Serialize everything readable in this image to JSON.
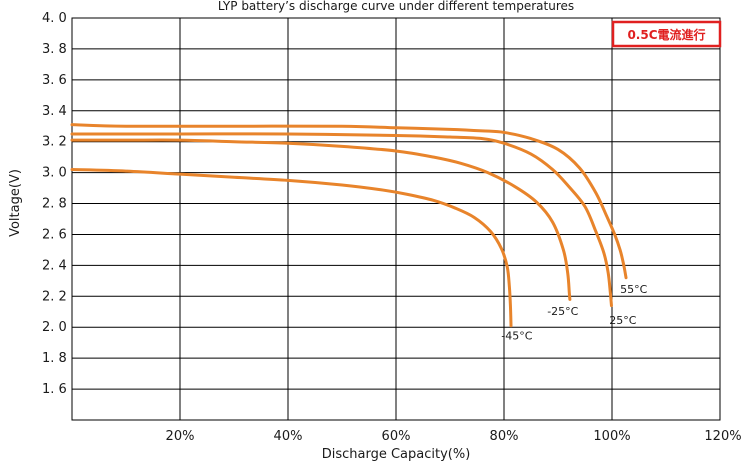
{
  "chart_data": {
    "type": "line",
    "title": "LYP battery’s discharge curve under different temperatures",
    "xlabel": "Discharge  Capacity(%)",
    "ylabel": "Voltage(V)",
    "xlim": [
      0,
      120
    ],
    "ylim": [
      1.4,
      4.0
    ],
    "grid": true,
    "line_color": "#E8842B",
    "note": {
      "text": "0.5C電流進行",
      "color": "#E02020",
      "position": "top-right"
    },
    "x_ticks": [
      {
        "value": 20,
        "label": "20%"
      },
      {
        "value": 40,
        "label": "40%"
      },
      {
        "value": 60,
        "label": "60%"
      },
      {
        "value": 80,
        "label": "80%"
      },
      {
        "value": 100,
        "label": "100%"
      },
      {
        "value": 120,
        "label": "120%"
      }
    ],
    "y_ticks": [
      {
        "value": 4.0,
        "label": "4. 0"
      },
      {
        "value": 3.8,
        "label": "3. 8"
      },
      {
        "value": 3.6,
        "label": "3. 6"
      },
      {
        "value": 3.4,
        "label": "3. 4"
      },
      {
        "value": 3.2,
        "label": "3. 2"
      },
      {
        "value": 3.0,
        "label": "3. 0"
      },
      {
        "value": 2.8,
        "label": "2. 8"
      },
      {
        "value": 2.6,
        "label": "2. 6"
      },
      {
        "value": 2.4,
        "label": "2. 4"
      },
      {
        "value": 2.2,
        "label": "2. 2"
      },
      {
        "value": 2.0,
        "label": "2. 0"
      },
      {
        "value": 1.8,
        "label": "1. 8"
      },
      {
        "value": 1.6,
        "label": "1. 6"
      }
    ],
    "series": [
      {
        "name": "55°C",
        "label_at": {
          "x": 101.5,
          "y": 2.22
        },
        "points": [
          [
            0,
            3.31
          ],
          [
            10,
            3.3
          ],
          [
            30,
            3.3
          ],
          [
            50,
            3.3
          ],
          [
            60,
            3.29
          ],
          [
            70,
            3.28
          ],
          [
            76,
            3.27
          ],
          [
            80,
            3.26
          ],
          [
            85,
            3.22
          ],
          [
            90,
            3.15
          ],
          [
            94,
            3.03
          ],
          [
            97,
            2.87
          ],
          [
            99,
            2.72
          ],
          [
            100.5,
            2.6
          ],
          [
            101.5,
            2.5
          ],
          [
            102,
            2.43
          ],
          [
            102.3,
            2.38
          ],
          [
            102.6,
            2.32
          ]
        ]
      },
      {
        "name": "25°C",
        "label_at": {
          "x": 99.5,
          "y": 2.02
        },
        "points": [
          [
            0,
            3.25
          ],
          [
            20,
            3.25
          ],
          [
            40,
            3.25
          ],
          [
            60,
            3.24
          ],
          [
            70,
            3.23
          ],
          [
            76,
            3.22
          ],
          [
            80,
            3.19
          ],
          [
            85,
            3.12
          ],
          [
            89,
            3.02
          ],
          [
            92,
            2.91
          ],
          [
            95,
            2.78
          ],
          [
            97,
            2.62
          ],
          [
            98.5,
            2.48
          ],
          [
            99.3,
            2.35
          ],
          [
            99.7,
            2.22
          ],
          [
            99.9,
            2.14
          ]
        ]
      },
      {
        "name": "-25°C",
        "label_at": {
          "x": 88,
          "y": 2.08
        },
        "points": [
          [
            0,
            3.21
          ],
          [
            10,
            3.21
          ],
          [
            20,
            3.21
          ],
          [
            30,
            3.2
          ],
          [
            40,
            3.19
          ],
          [
            50,
            3.17
          ],
          [
            60,
            3.14
          ],
          [
            67,
            3.1
          ],
          [
            72,
            3.06
          ],
          [
            77,
            3.0
          ],
          [
            82,
            2.91
          ],
          [
            86,
            2.81
          ],
          [
            89,
            2.68
          ],
          [
            91,
            2.5
          ],
          [
            91.8,
            2.35
          ],
          [
            92.1,
            2.22
          ],
          [
            92.2,
            2.18
          ]
        ]
      },
      {
        "name": "-45°C",
        "label_at": {
          "x": 79.5,
          "y": 1.92
        },
        "points": [
          [
            0,
            3.02
          ],
          [
            10,
            3.01
          ],
          [
            20,
            2.99
          ],
          [
            30,
            2.97
          ],
          [
            40,
            2.95
          ],
          [
            50,
            2.92
          ],
          [
            57,
            2.89
          ],
          [
            62,
            2.86
          ],
          [
            67,
            2.82
          ],
          [
            71,
            2.77
          ],
          [
            74.5,
            2.71
          ],
          [
            77.5,
            2.62
          ],
          [
            79.5,
            2.51
          ],
          [
            80.6,
            2.39
          ],
          [
            81,
            2.26
          ],
          [
            81.2,
            2.13
          ],
          [
            81.3,
            2.01
          ]
        ]
      }
    ]
  }
}
